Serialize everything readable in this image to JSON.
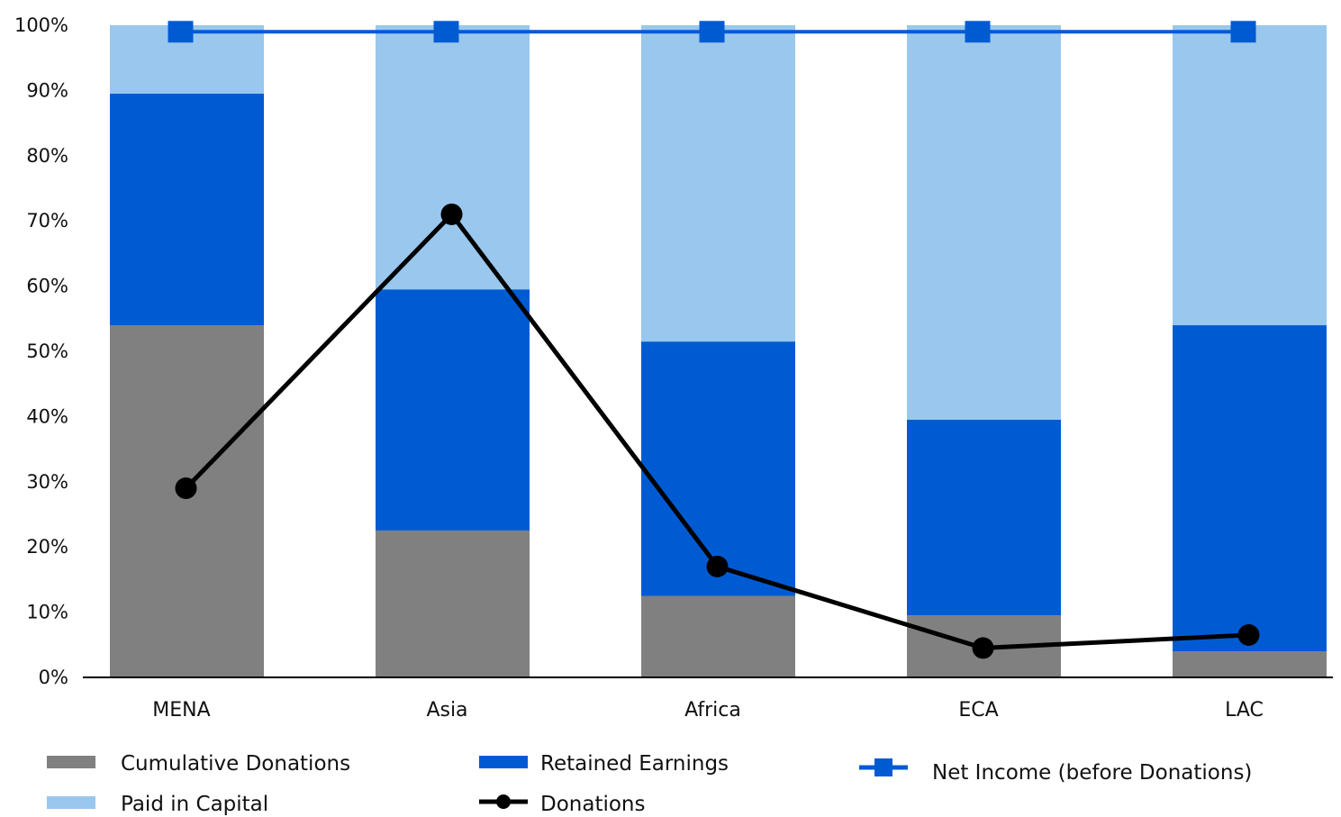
{
  "chart_data": {
    "type": "bar",
    "stacked": true,
    "categories": [
      "MENA",
      "Asia",
      "Africa",
      "ECA",
      "LAC"
    ],
    "yticks": [
      "0%",
      "10%",
      "20%",
      "30%",
      "40%",
      "50%",
      "60%",
      "70%",
      "80%",
      "90%",
      "100%"
    ],
    "ylim": [
      0,
      100
    ],
    "grid": false,
    "series": [
      {
        "name": "Cumulative Donations",
        "kind": "bar",
        "color": "#808080",
        "values": [
          54,
          22.5,
          12.5,
          9.5,
          4
        ]
      },
      {
        "name": "Retained Earnings",
        "kind": "bar",
        "color": "#005bd3",
        "values": [
          35.5,
          37,
          39,
          30,
          50
        ]
      },
      {
        "name": "Paid in Capital",
        "kind": "bar",
        "color": "#99c7ee",
        "values": [
          10.5,
          40.5,
          48.5,
          60.5,
          46
        ]
      },
      {
        "name": "Net Income (before Donations)",
        "kind": "line",
        "color": "#005bd3",
        "marker": "square",
        "values": [
          99,
          99,
          99,
          99,
          99
        ]
      },
      {
        "name": "Donations",
        "kind": "line",
        "color": "#000000",
        "marker": "circle",
        "values": [
          29,
          71,
          17,
          4.5,
          6.5
        ]
      }
    ],
    "legend": {
      "placement": "bottom",
      "items": [
        {
          "label": "Cumulative Donations",
          "symbol": "bar",
          "color": "#808080"
        },
        {
          "label": "Paid in Capital",
          "symbol": "bar",
          "color": "#99c7ee"
        },
        {
          "label": "Retained Earnings",
          "symbol": "bar",
          "color": "#005bd3"
        },
        {
          "label": "Donations",
          "symbol": "line-circle",
          "color": "#000000"
        },
        {
          "label": "Net Income (before Donations)",
          "symbol": "line-square",
          "color": "#005bd3"
        }
      ]
    }
  }
}
